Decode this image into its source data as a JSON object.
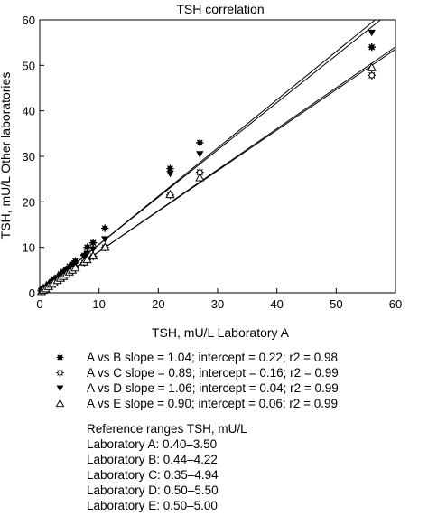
{
  "chart_data": {
    "type": "scatter",
    "title": "TSH correlation",
    "xlabel": "TSH, mU/L Laboratory A",
    "ylabel": "TSH, mU/L Other laboratories",
    "xlim": [
      0,
      60
    ],
    "ylim": [
      0,
      60
    ],
    "x_ticks": [
      "0",
      "10",
      "20",
      "30",
      "40",
      "50",
      "60"
    ],
    "y_ticks": [
      "0",
      "10",
      "20",
      "30",
      "40",
      "50",
      "60"
    ],
    "grid": false,
    "legend_position": "bottom",
    "series": [
      {
        "name": "A vs B slope = 1.04; intercept = 0.22; r2 = 0.98",
        "marker": "filled-circle-star",
        "x": [
          0.3,
          0.6,
          1.0,
          1.5,
          2.0,
          2.4,
          3.0,
          3.5,
          4.0,
          4.5,
          5.0,
          5.5,
          6.0,
          7.5,
          8.0,
          9.0,
          11.0,
          22.0,
          27.0,
          56.0
        ],
        "y": [
          0.5,
          0.9,
          1.3,
          1.9,
          2.4,
          3.0,
          3.4,
          4.1,
          4.6,
          5.1,
          5.8,
          6.3,
          7.0,
          8.2,
          10.0,
          11.0,
          14.2,
          27.3,
          33.0,
          54.0
        ],
        "fit": {
          "slope": 1.04,
          "intercept": 0.22
        }
      },
      {
        "name": "A vs C slope = 0.89; intercept = 0.16; r2 = 0.99",
        "marker": "open-circle-star",
        "x": [
          0.3,
          0.6,
          1.0,
          1.5,
          2.0,
          2.4,
          3.0,
          3.5,
          4.0,
          4.5,
          5.0,
          5.5,
          6.0,
          7.5,
          8.0,
          9.0,
          11.0,
          22.0,
          27.0,
          56.0
        ],
        "y": [
          0.4,
          0.7,
          1.0,
          1.5,
          1.9,
          2.3,
          2.8,
          3.2,
          3.6,
          4.0,
          4.5,
          5.0,
          5.5,
          6.6,
          7.3,
          8.0,
          10.0,
          21.5,
          26.5,
          47.8
        ],
        "fit": {
          "slope": 0.89,
          "intercept": 0.16
        }
      },
      {
        "name": "A vs D slope = 1.06; intercept = 0.04; r2 = 0.99",
        "marker": "filled-triangle-down",
        "x": [
          0.3,
          0.6,
          1.0,
          1.5,
          2.0,
          2.4,
          3.0,
          3.5,
          4.0,
          4.5,
          5.0,
          5.5,
          6.0,
          7.5,
          8.0,
          9.0,
          11.0,
          22.0,
          27.0,
          56.0
        ],
        "y": [
          0.3,
          0.7,
          1.1,
          1.6,
          2.1,
          2.6,
          3.1,
          3.7,
          4.2,
          4.8,
          5.3,
          5.8,
          6.4,
          7.9,
          8.6,
          9.6,
          11.8,
          26.2,
          30.5,
          57.2
        ],
        "fit": {
          "slope": 1.06,
          "intercept": 0.04
        }
      },
      {
        "name": "A vs E slope = 0.90; intercept = 0.06; r2 = 0.99",
        "marker": "open-triangle-up",
        "x": [
          0.3,
          0.6,
          1.0,
          1.5,
          2.0,
          2.4,
          3.0,
          3.5,
          4.0,
          4.5,
          5.0,
          5.5,
          6.0,
          7.5,
          8.0,
          9.0,
          11.0,
          22.0,
          27.0,
          56.0
        ],
        "y": [
          0.3,
          0.6,
          0.9,
          1.4,
          1.9,
          2.2,
          2.7,
          3.2,
          3.6,
          4.1,
          4.6,
          5.0,
          5.5,
          6.8,
          7.3,
          8.1,
          10.0,
          21.6,
          25.3,
          49.5
        ],
        "fit": {
          "slope": 0.9,
          "intercept": 0.06
        }
      }
    ]
  },
  "reference": {
    "heading": "Reference ranges TSH, mU/L",
    "lines": [
      "Laboratory A: 0.40–3.50",
      "Laboratory B: 0.44–4.22",
      "Laboratory C: 0.35–4.94",
      "Laboratory D: 0.50–5.50",
      "Laboratory E: 0.50–5.00"
    ]
  },
  "colors": {
    "ink": "#000000",
    "background": "#ffffff"
  }
}
